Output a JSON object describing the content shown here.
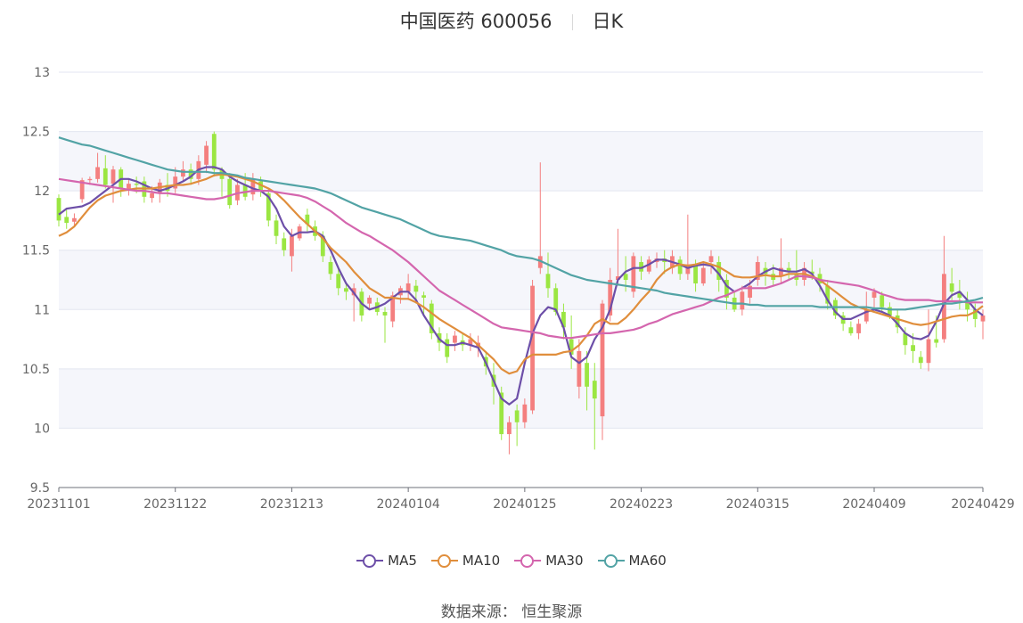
{
  "header": {
    "title": "中国医药 600056",
    "period": "日K"
  },
  "source": "数据来源： 恒生聚源",
  "chart_data": {
    "type": "candlestick",
    "title": "中国医药 600056",
    "ylim": [
      9.5,
      13
    ],
    "yticks": [
      "9.5",
      "10",
      "10.5",
      "11",
      "11.5",
      "12",
      "12.5",
      "13"
    ],
    "xticks": [
      "20231101",
      "20231122",
      "20231213",
      "20240104",
      "20240125",
      "20240223",
      "20240315",
      "20240409",
      "20240429"
    ],
    "x_tick_index": [
      0,
      15,
      30,
      45,
      60,
      75,
      90,
      105,
      119
    ],
    "grid": true,
    "legend_position": "bottom",
    "up_color": "#f47f7f",
    "down_color": "#9be642",
    "ohlc": [
      [
        11.94,
        11.75,
        11.97,
        11.7
      ],
      [
        11.78,
        11.73,
        11.84,
        11.68
      ],
      [
        11.74,
        11.77,
        11.81,
        11.71
      ],
      [
        11.93,
        12.09,
        12.11,
        11.9
      ],
      [
        12.09,
        12.1,
        12.12,
        12.05
      ],
      [
        12.1,
        12.2,
        12.32,
        12.07
      ],
      [
        12.19,
        12.05,
        12.3,
        12.02
      ],
      [
        12.06,
        12.18,
        12.21,
        11.9
      ],
      [
        12.18,
        12.02,
        12.2,
        11.95
      ],
      [
        12.02,
        12.06,
        12.1,
        11.96
      ],
      [
        12.06,
        12.05,
        12.12,
        11.98
      ],
      [
        12.08,
        11.95,
        12.12,
        11.9
      ],
      [
        11.94,
        11.98,
        12.04,
        11.9
      ],
      [
        11.98,
        12.07,
        12.1,
        11.9
      ],
      [
        12.05,
        12.0,
        12.15,
        11.95
      ],
      [
        12.02,
        12.12,
        12.2,
        11.98
      ],
      [
        12.12,
        12.18,
        12.25,
        12.08
      ],
      [
        12.18,
        12.1,
        12.23,
        12.05
      ],
      [
        12.1,
        12.25,
        12.3,
        12.05
      ],
      [
        12.22,
        12.38,
        12.42,
        12.15
      ],
      [
        12.48,
        12.18,
        12.5,
        12.12
      ],
      [
        12.18,
        12.1,
        12.2,
        11.95
      ],
      [
        12.1,
        11.88,
        12.15,
        11.85
      ],
      [
        11.92,
        12.05,
        12.1,
        11.88
      ],
      [
        12.05,
        11.95,
        12.15,
        11.92
      ],
      [
        11.97,
        12.1,
        12.15,
        11.92
      ],
      [
        12.08,
        12.0,
        12.12,
        11.95
      ],
      [
        11.98,
        11.75,
        12.02,
        11.7
      ],
      [
        11.75,
        11.62,
        11.8,
        11.55
      ],
      [
        11.6,
        11.5,
        11.65,
        11.45
      ],
      [
        11.45,
        11.62,
        11.68,
        11.32
      ],
      [
        11.6,
        11.7,
        11.72,
        11.58
      ],
      [
        11.8,
        11.72,
        11.85,
        11.65
      ],
      [
        11.7,
        11.62,
        11.75,
        11.58
      ],
      [
        11.62,
        11.45,
        11.66,
        11.4
      ],
      [
        11.4,
        11.3,
        11.45,
        11.25
      ],
      [
        11.3,
        11.18,
        11.35,
        11.12
      ],
      [
        11.18,
        11.15,
        11.22,
        11.08
      ],
      [
        11.12,
        11.18,
        11.22,
        10.9
      ],
      [
        11.15,
        10.95,
        11.18,
        10.9
      ],
      [
        11.05,
        11.1,
        11.12,
        11.0
      ],
      [
        11.06,
        10.98,
        11.1,
        10.95
      ],
      [
        10.98,
        10.95,
        11.02,
        10.72
      ],
      [
        10.9,
        11.12,
        11.15,
        10.85
      ],
      [
        11.12,
        11.18,
        11.2,
        11.05
      ],
      [
        11.15,
        11.22,
        11.3,
        11.08
      ],
      [
        11.2,
        11.15,
        11.25,
        11.05
      ],
      [
        11.12,
        11.1,
        11.15,
        10.95
      ],
      [
        11.05,
        10.8,
        11.08,
        10.75
      ],
      [
        10.8,
        10.72,
        10.85,
        10.65
      ],
      [
        10.75,
        10.6,
        10.8,
        10.55
      ],
      [
        10.72,
        10.78,
        10.82,
        10.65
      ],
      [
        10.74,
        10.7,
        10.8,
        10.65
      ],
      [
        10.7,
        10.75,
        10.8,
        10.65
      ],
      [
        10.68,
        10.72,
        10.78,
        10.6
      ],
      [
        10.6,
        10.52,
        10.65,
        10.45
      ],
      [
        10.45,
        10.35,
        10.55,
        10.2
      ],
      [
        10.3,
        9.95,
        10.35,
        9.9
      ],
      [
        9.95,
        10.05,
        10.1,
        9.78
      ],
      [
        10.15,
        10.05,
        10.2,
        9.85
      ],
      [
        10.05,
        10.2,
        10.25,
        10.0
      ],
      [
        10.15,
        11.2,
        11.25,
        10.12
      ],
      [
        11.35,
        11.45,
        12.24,
        11.3
      ],
      [
        11.3,
        11.18,
        11.48,
        11.1
      ],
      [
        11.18,
        10.98,
        11.22,
        10.95
      ],
      [
        10.98,
        10.85,
        11.05,
        10.75
      ],
      [
        10.75,
        10.62,
        10.95,
        10.5
      ],
      [
        10.35,
        10.65,
        10.75,
        10.25
      ],
      [
        10.55,
        10.35,
        10.65,
        10.15
      ],
      [
        10.4,
        10.25,
        10.55,
        9.82
      ],
      [
        10.1,
        11.05,
        11.08,
        9.9
      ],
      [
        10.95,
        11.25,
        11.35,
        10.9
      ],
      [
        11.25,
        11.28,
        11.68,
        11.2
      ],
      [
        11.3,
        11.25,
        11.45,
        11.15
      ],
      [
        11.15,
        11.45,
        11.48,
        11.1
      ],
      [
        11.4,
        11.32,
        11.45,
        11.25
      ],
      [
        11.32,
        11.42,
        11.45,
        11.3
      ],
      [
        11.4,
        11.43,
        11.48,
        11.35
      ],
      [
        11.43,
        11.4,
        11.5,
        11.3
      ],
      [
        11.35,
        11.45,
        11.5,
        11.3
      ],
      [
        11.42,
        11.3,
        11.45,
        11.25
      ],
      [
        11.3,
        11.38,
        11.8,
        11.25
      ],
      [
        11.38,
        11.22,
        11.42,
        11.15
      ],
      [
        11.22,
        11.35,
        11.4,
        11.2
      ],
      [
        11.4,
        11.45,
        11.5,
        11.3
      ],
      [
        11.4,
        11.25,
        11.45,
        11.15
      ],
      [
        11.25,
        11.1,
        11.3,
        11.0
      ],
      [
        11.1,
        11.0,
        11.15,
        10.98
      ],
      [
        11.0,
        11.15,
        11.2,
        10.95
      ],
      [
        11.1,
        11.2,
        11.25,
        11.05
      ],
      [
        11.25,
        11.4,
        11.45,
        11.2
      ],
      [
        11.35,
        11.3,
        11.4,
        11.2
      ],
      [
        11.3,
        11.25,
        11.38,
        11.2
      ],
      [
        11.28,
        11.35,
        11.6,
        11.22
      ],
      [
        11.35,
        11.32,
        11.4,
        11.25
      ],
      [
        11.3,
        11.25,
        11.5,
        11.2
      ],
      [
        11.25,
        11.35,
        11.4,
        11.2
      ],
      [
        11.32,
        11.3,
        11.42,
        11.25
      ],
      [
        11.3,
        11.22,
        11.35,
        11.15
      ],
      [
        11.2,
        11.05,
        11.25,
        11.0
      ],
      [
        11.08,
        10.95,
        11.1,
        10.92
      ],
      [
        10.95,
        10.88,
        10.98,
        10.82
      ],
      [
        10.85,
        10.8,
        10.9,
        10.78
      ],
      [
        10.8,
        10.88,
        10.92,
        10.75
      ],
      [
        10.9,
        11.0,
        11.15,
        10.88
      ],
      [
        11.1,
        11.15,
        11.18,
        11.0
      ],
      [
        11.12,
        11.02,
        11.15,
        10.98
      ],
      [
        11.02,
        10.95,
        11.06,
        10.92
      ],
      [
        10.95,
        10.85,
        11.0,
        10.8
      ],
      [
        10.8,
        10.7,
        10.85,
        10.62
      ],
      [
        10.7,
        10.65,
        10.8,
        10.55
      ],
      [
        10.6,
        10.55,
        10.65,
        10.5
      ],
      [
        10.55,
        10.75,
        11.0,
        10.48
      ],
      [
        10.75,
        10.72,
        10.95,
        10.68
      ],
      [
        10.75,
        11.3,
        11.62,
        10.72
      ],
      [
        11.22,
        11.15,
        11.35,
        11.08
      ],
      [
        11.15,
        11.1,
        11.25,
        11.0
      ],
      [
        11.08,
        11.0,
        11.15,
        10.9
      ],
      [
        11.0,
        10.92,
        11.05,
        10.85
      ],
      [
        10.9,
        10.95,
        11.0,
        10.75
      ]
    ],
    "series": [
      {
        "name": "MA5",
        "color": "#6d4fa8",
        "values": [
          11.8,
          11.85,
          11.86,
          11.87,
          11.9,
          11.95,
          12.0,
          12.05,
          12.1,
          12.1,
          12.08,
          12.05,
          12.02,
          12.0,
          12.02,
          12.05,
          12.08,
          12.12,
          12.18,
          12.2,
          12.2,
          12.18,
          12.12,
          12.08,
          12.05,
          12.02,
          12.0,
          11.95,
          11.85,
          11.7,
          11.62,
          11.65,
          11.65,
          11.66,
          11.62,
          11.5,
          11.35,
          11.22,
          11.14,
          11.05,
          11.0,
          11.02,
          11.05,
          11.1,
          11.15,
          11.15,
          11.08,
          10.95,
          10.85,
          10.75,
          10.7,
          10.7,
          10.72,
          10.7,
          10.68,
          10.55,
          10.4,
          10.25,
          10.2,
          10.25,
          10.55,
          10.8,
          10.95,
          11.02,
          11.0,
          10.85,
          10.6,
          10.55,
          10.6,
          10.75,
          10.85,
          11.0,
          11.25,
          11.32,
          11.35,
          11.35,
          11.38,
          11.42,
          11.42,
          11.4,
          11.38,
          11.35,
          11.37,
          11.38,
          11.37,
          11.3,
          11.2,
          11.15,
          11.18,
          11.22,
          11.28,
          11.32,
          11.35,
          11.33,
          11.32,
          11.32,
          11.34,
          11.3,
          11.2,
          11.08,
          10.98,
          10.92,
          10.92,
          10.95,
          10.98,
          11.0,
          10.98,
          10.95,
          10.88,
          10.8,
          10.76,
          10.75,
          10.78,
          10.9,
          11.05,
          11.12,
          11.15,
          11.08,
          11.0,
          10.95
        ]
      },
      {
        "name": "MA10",
        "color": "#e08e3c",
        "values": [
          11.62,
          11.65,
          11.7,
          11.78,
          11.86,
          11.92,
          11.96,
          11.98,
          12.0,
          12.01,
          12.02,
          12.02,
          12.02,
          12.03,
          12.04,
          12.05,
          12.05,
          12.06,
          12.08,
          12.1,
          12.13,
          12.14,
          12.13,
          12.12,
          12.1,
          12.08,
          12.05,
          12.02,
          11.98,
          11.92,
          11.85,
          11.78,
          11.72,
          11.66,
          11.6,
          11.52,
          11.46,
          11.4,
          11.32,
          11.25,
          11.18,
          11.14,
          11.1,
          11.1,
          11.09,
          11.09,
          11.06,
          11.02,
          10.97,
          10.92,
          10.88,
          10.84,
          10.8,
          10.76,
          10.7,
          10.64,
          10.58,
          10.5,
          10.46,
          10.48,
          10.58,
          10.62,
          10.62,
          10.62,
          10.62,
          10.64,
          10.65,
          10.7,
          10.78,
          10.88,
          10.92,
          10.88,
          10.88,
          10.93,
          11.0,
          11.08,
          11.15,
          11.25,
          11.32,
          11.36,
          11.38,
          11.37,
          11.38,
          11.4,
          11.38,
          11.36,
          11.32,
          11.28,
          11.27,
          11.27,
          11.28,
          11.29,
          11.28,
          11.28,
          11.3,
          11.3,
          11.3,
          11.28,
          11.25,
          11.2,
          11.15,
          11.1,
          11.05,
          11.02,
          11.0,
          10.98,
          10.96,
          10.94,
          10.92,
          10.9,
          10.88,
          10.87,
          10.88,
          10.9,
          10.92,
          10.94,
          10.95,
          10.95,
          10.98,
          11.03
        ]
      },
      {
        "name": "MA30",
        "color": "#d466ae",
        "values": [
          12.1,
          12.09,
          12.08,
          12.07,
          12.06,
          12.05,
          12.04,
          12.03,
          12.02,
          12.01,
          12.0,
          12.0,
          11.99,
          11.98,
          11.98,
          11.97,
          11.96,
          11.95,
          11.94,
          11.93,
          11.93,
          11.94,
          11.96,
          11.98,
          11.99,
          12.0,
          12.0,
          12.0,
          11.99,
          11.98,
          11.97,
          11.96,
          11.94,
          11.91,
          11.87,
          11.83,
          11.78,
          11.73,
          11.69,
          11.65,
          11.62,
          11.58,
          11.54,
          11.5,
          11.45,
          11.4,
          11.34,
          11.28,
          11.22,
          11.16,
          11.12,
          11.08,
          11.04,
          11.0,
          10.96,
          10.92,
          10.88,
          10.85,
          10.84,
          10.83,
          10.82,
          10.81,
          10.8,
          10.78,
          10.77,
          10.76,
          10.76,
          10.77,
          10.78,
          10.79,
          10.8,
          10.8,
          10.81,
          10.82,
          10.83,
          10.85,
          10.88,
          10.9,
          10.93,
          10.96,
          10.98,
          11.0,
          11.02,
          11.04,
          11.07,
          11.1,
          11.12,
          11.15,
          11.18,
          11.18,
          11.18,
          11.18,
          11.2,
          11.22,
          11.25,
          11.28,
          11.28,
          11.27,
          11.25,
          11.24,
          11.23,
          11.22,
          11.21,
          11.2,
          11.18,
          11.16,
          11.13,
          11.11,
          11.09,
          11.08,
          11.08,
          11.08,
          11.08,
          11.07,
          11.07,
          11.07,
          11.07,
          11.06,
          11.06,
          11.06
        ]
      },
      {
        "name": "MA60",
        "color": "#52a3a5",
        "values": [
          12.45,
          12.43,
          12.41,
          12.39,
          12.38,
          12.36,
          12.34,
          12.32,
          12.3,
          12.28,
          12.26,
          12.24,
          12.22,
          12.2,
          12.18,
          12.17,
          12.16,
          12.16,
          12.16,
          12.16,
          12.15,
          12.15,
          12.14,
          12.13,
          12.11,
          12.1,
          12.09,
          12.08,
          12.07,
          12.06,
          12.05,
          12.04,
          12.03,
          12.02,
          12.0,
          11.98,
          11.95,
          11.92,
          11.89,
          11.86,
          11.84,
          11.82,
          11.8,
          11.78,
          11.76,
          11.73,
          11.7,
          11.67,
          11.64,
          11.62,
          11.61,
          11.6,
          11.59,
          11.58,
          11.56,
          11.54,
          11.52,
          11.5,
          11.47,
          11.45,
          11.44,
          11.43,
          11.41,
          11.38,
          11.35,
          11.32,
          11.29,
          11.27,
          11.25,
          11.24,
          11.23,
          11.22,
          11.21,
          11.2,
          11.19,
          11.18,
          11.17,
          11.16,
          11.14,
          11.13,
          11.12,
          11.11,
          11.1,
          11.09,
          11.08,
          11.07,
          11.06,
          11.05,
          11.05,
          11.04,
          11.04,
          11.03,
          11.03,
          11.03,
          11.03,
          11.03,
          11.03,
          11.03,
          11.02,
          11.02,
          11.02,
          11.02,
          11.02,
          11.02,
          11.02,
          11.01,
          11.01,
          11.0,
          11.0,
          11.0,
          11.01,
          11.02,
          11.03,
          11.04,
          11.05,
          11.05,
          11.06,
          11.07,
          11.08,
          11.1
        ]
      }
    ]
  }
}
